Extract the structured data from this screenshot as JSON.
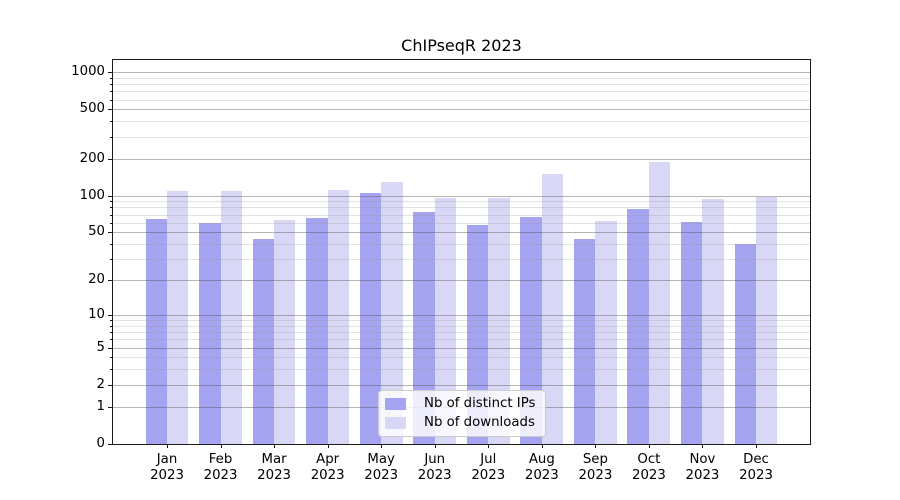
{
  "title": "ChIPseqR 2023",
  "chart_data": {
    "type": "bar",
    "title": "ChIPseqR 2023",
    "categories": [
      "Jan 2023",
      "Feb 2023",
      "Mar 2023",
      "Apr 2023",
      "May 2023",
      "Jun 2023",
      "Jul 2023",
      "Aug 2023",
      "Sep 2023",
      "Oct 2023",
      "Nov 2023",
      "Dec 2023"
    ],
    "series": [
      {
        "name": "Nb of distinct IPs",
        "color": "#a4a4f0",
        "values": [
          64,
          60,
          44,
          66,
          105,
          74,
          57,
          67,
          44,
          78,
          61,
          40
        ]
      },
      {
        "name": "Nb of downloads",
        "color": "#d8d8f6",
        "values": [
          109,
          109,
          63,
          112,
          130,
          96,
          96,
          150,
          62,
          186,
          94,
          97
        ]
      }
    ],
    "yscale": "log1p",
    "y_major_ticks": [
      0,
      1,
      2,
      5,
      10,
      20,
      50,
      100,
      200,
      500,
      1000
    ],
    "y_minor_ticks": [
      3,
      4,
      6,
      7,
      8,
      9,
      30,
      40,
      60,
      70,
      80,
      90,
      300,
      400,
      600,
      700,
      800,
      900
    ],
    "ylim": [
      0,
      1253
    ],
    "xlabel": "",
    "ylabel": "",
    "grid": true,
    "legend_position": "lower center"
  },
  "colors": {
    "bar_distinct_ips": "#a4a4f0",
    "bar_downloads": "#d8d8f6",
    "grid_major": "#b0b0b0",
    "grid_minor": "#e6e6e6",
    "axis": "#1a1a1a",
    "background": "#ffffff"
  }
}
